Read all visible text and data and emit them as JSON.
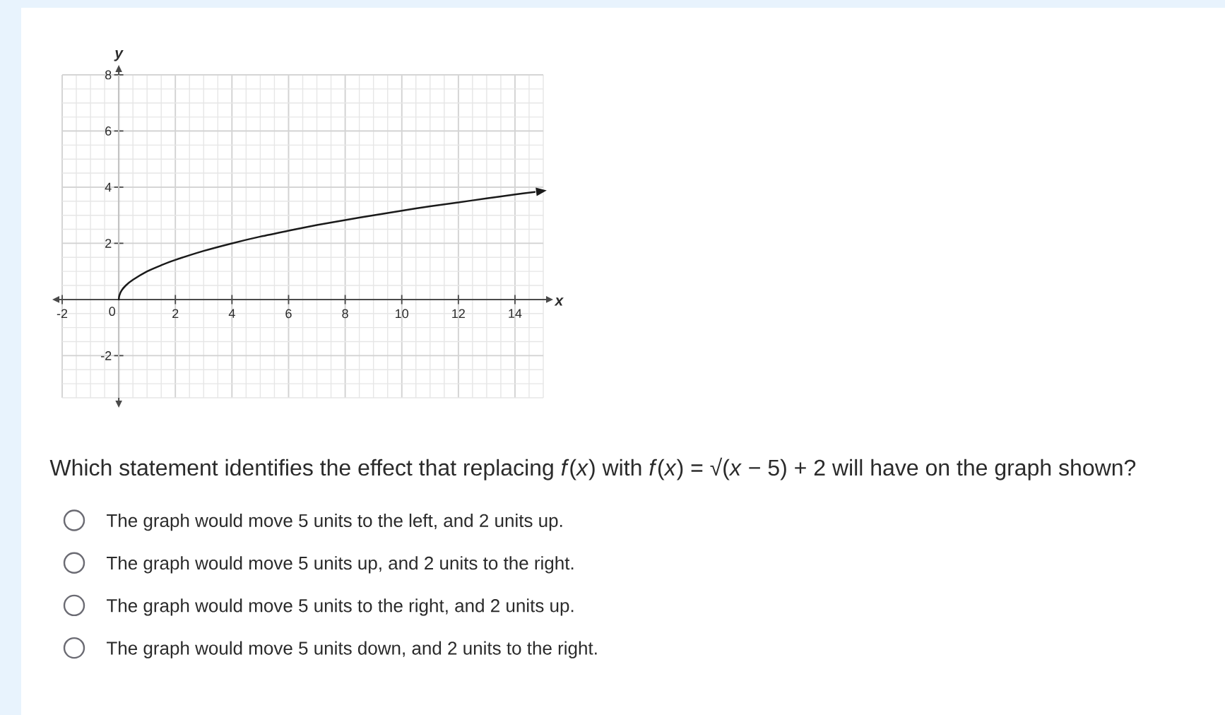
{
  "chart_data": {
    "type": "line",
    "xlabel": "x",
    "ylabel": "y",
    "annotations": [
      "Which statement identifies the effect that replacing *f*(*x*) with *f*(*x*) = √(*x* − 5) + 2 will have on the graph shown?",
      "The graph would move 5 units to the left, and 2 units up.",
      "The graph would move 5 units up, and 2 units to the right.",
      "The graph would move 5 units to the right, and 2 units up.",
      "The graph would move 5 units down, and 2 units to the right."
    ],
    "series": [
      {
        "color": "#1a1a1a",
        "x": [
          0,
          0.02,
          0.1,
          0.25,
          0.5,
          1,
          1.5,
          2,
          3,
          4,
          5,
          6,
          7,
          8,
          9,
          10,
          11,
          12,
          13,
          14,
          14.7
        ],
        "values": [
          0,
          0.14,
          0.32,
          0.5,
          0.7,
          1,
          1.22,
          1.41,
          1.73,
          2,
          2.24,
          2.45,
          2.65,
          2.83,
          3,
          3.16,
          3.32,
          3.46,
          3.6,
          3.74,
          3.83
        ]
      }
    ],
    "xlim": [
      -2,
      15
    ],
    "ylim": [
      -3.5,
      8
    ],
    "xticks": [
      -2,
      0,
      2,
      4,
      6,
      8,
      10,
      12,
      14
    ],
    "yticks": [
      -2,
      2,
      4,
      6,
      8
    ],
    "grid": true
  }
}
